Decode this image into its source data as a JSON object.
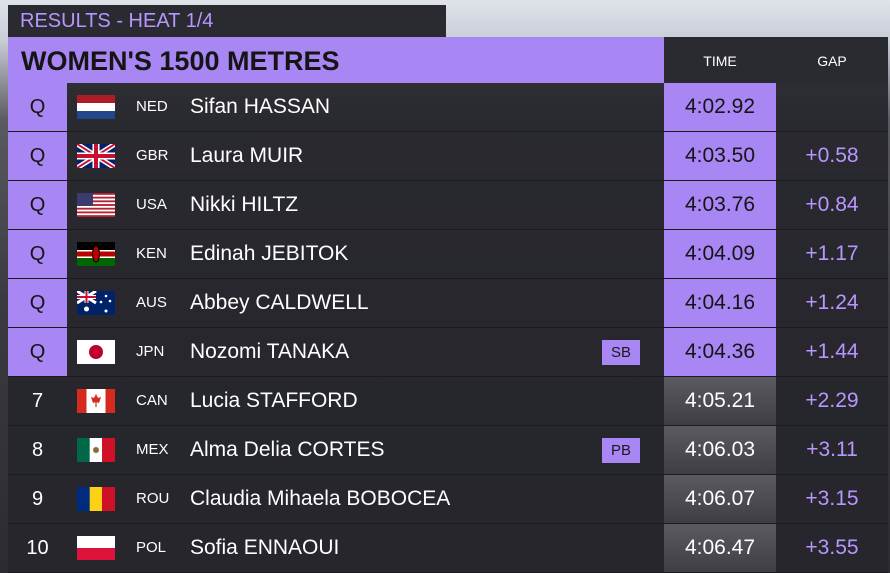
{
  "header": {
    "label": "RESULTS - HEAT  1/4",
    "title": "WOMEN'S 1500 METRES",
    "columns": [
      "TIME",
      "GAP"
    ]
  },
  "table": {
    "rows": [
      {
        "rank": "Q",
        "highlight": true,
        "country": "NED",
        "name": "Sifan HASSAN",
        "time": "4:02.92"
      },
      {
        "rank": "Q",
        "highlight": true,
        "country": "GBR",
        "name": "Laura MUIR",
        "time": "4:03.50",
        "gap": "+0.58"
      },
      {
        "rank": "Q",
        "highlight": true,
        "country": "USA",
        "name": "Nikki HILTZ",
        "time": "4:03.76",
        "gap": "+0.84"
      },
      {
        "rank": "Q",
        "highlight": true,
        "country": "KEN",
        "name": "Edinah JEBITOK",
        "time": "4:04.09",
        "gap": "+1.17"
      },
      {
        "rank": "Q",
        "highlight": true,
        "country": "AUS",
        "name": "Abbey CALDWELL",
        "time": "4:04.16",
        "gap": "+1.24"
      },
      {
        "rank": "Q",
        "highlight": true,
        "country": "JPN",
        "name": "Nozomi TANAKA",
        "note": "SB",
        "time": "4:04.36",
        "gap": "+1.44"
      },
      {
        "rank": "7",
        "highlight": false,
        "country": "CAN",
        "name": "Lucia STAFFORD",
        "time": "4:05.21",
        "gap": "+2.29"
      },
      {
        "rank": "8",
        "highlight": false,
        "country": "MEX",
        "name": "Alma Delia CORTES",
        "note": "PB",
        "time": "4:06.03",
        "gap": "+3.11"
      },
      {
        "rank": "9",
        "highlight": false,
        "country": "ROU",
        "name": "Claudia Mihaela BOBOCEA",
        "time": "4:06.07",
        "gap": "+3.15"
      },
      {
        "rank": "10",
        "highlight": false,
        "country": "POL",
        "name": "Sofia ENNAOUI",
        "time": "4:06.47",
        "gap": "+3.55"
      }
    ]
  }
}
